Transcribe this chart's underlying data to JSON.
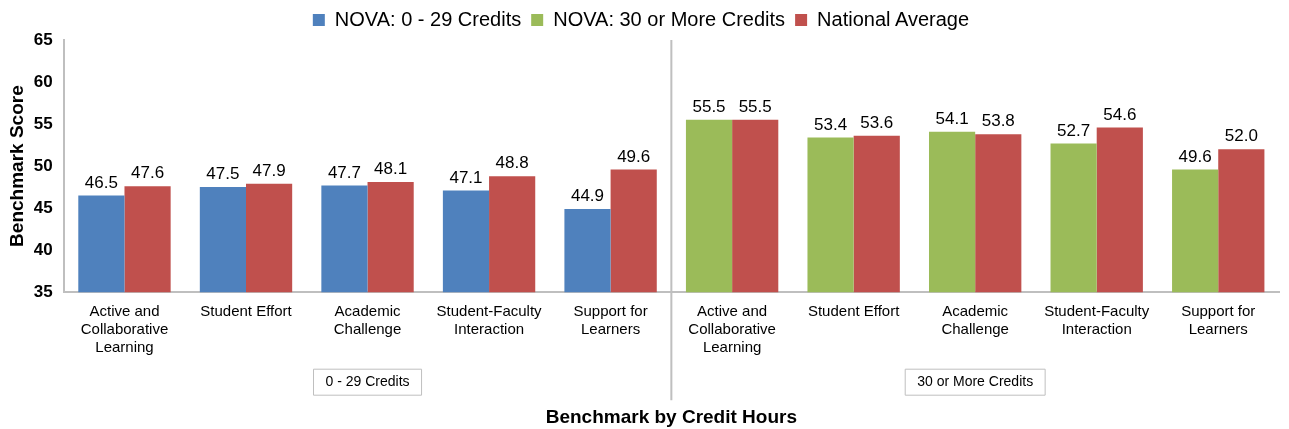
{
  "chart_data": {
    "type": "bar",
    "xlabel": "Benchmark by Credit Hours",
    "ylabel": "Benchmark Score",
    "categories": [
      "Active and Collaborative Learning",
      "Student Effort",
      "Academic Challenge",
      "Student-Faculty Interaction",
      "Support for Learners",
      "Active and Collaborative Learning",
      "Student Effort",
      "Academic Challenge",
      "Student-Faculty Interaction",
      "Support for Learners"
    ],
    "series": [
      {
        "name": "NOVA: 0 - 29 Credits",
        "color": "#4f81bd",
        "values": [
          46.5,
          47.5,
          47.7,
          47.1,
          44.9,
          null,
          null,
          null,
          null,
          null
        ],
        "value_labels": [
          "46.5",
          "47.5",
          "47.7",
          "47.1",
          "44.9",
          null,
          null,
          null,
          null,
          null
        ]
      },
      {
        "name": "NOVA: 30 or More Credits",
        "color": "#9bbb59",
        "values": [
          null,
          null,
          null,
          null,
          null,
          55.5,
          53.4,
          54.1,
          52.7,
          49.6
        ],
        "value_labels": [
          null,
          null,
          null,
          null,
          null,
          "55.5",
          "53.4",
          "54.1",
          "52.7",
          "49.6"
        ]
      },
      {
        "name": "National Average",
        "color": "#c0504d",
        "values": [
          47.6,
          47.9,
          48.1,
          48.8,
          49.6,
          55.5,
          53.6,
          53.8,
          54.6,
          52.0
        ],
        "value_labels": [
          "47.6",
          "47.9",
          "48.1",
          "48.8",
          "49.6",
          "55.5",
          "53.6",
          "53.8",
          "54.6",
          "52.0"
        ]
      }
    ],
    "ylim": [
      35,
      65
    ],
    "yticks": [
      35,
      40,
      45,
      50,
      55,
      60,
      65
    ],
    "grid": false,
    "legend": "top",
    "annotations": [
      "0 - 29 Credits",
      "30 or More Credits"
    ]
  }
}
